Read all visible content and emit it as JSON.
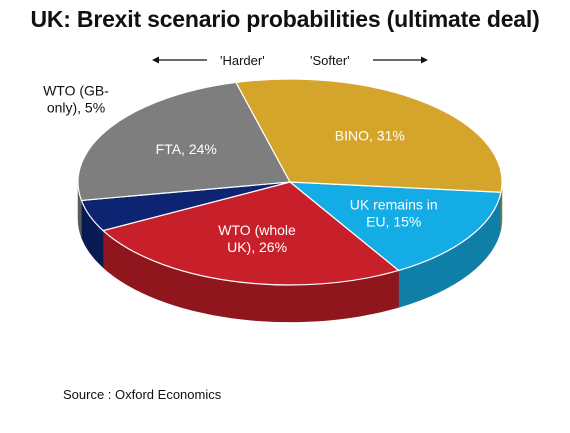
{
  "chart_data": {
    "type": "pie",
    "title": "UK: Brexit scenario probabilities (ultimate deal)",
    "legend": "none",
    "slices": [
      {
        "label_lines": [
          "UK remains in",
          "EU, 15%"
        ],
        "category": "UK remains in EU",
        "value": 15,
        "color": "#14ACE4",
        "side_color": "#0F7FA8"
      },
      {
        "label_lines": [
          "WTO (whole",
          "UK), 26%"
        ],
        "category": "WTO (whole UK)",
        "value": 26,
        "color": "#C8202A",
        "side_color": "#8F161D"
      },
      {
        "label_lines": [
          "WTO (GB-",
          "only), 5%"
        ],
        "category": "WTO (GB-only)",
        "value": 5,
        "color": "#0C2471",
        "side_color": "#081A52"
      },
      {
        "label_lines": [
          "FTA, 24%"
        ],
        "category": "FTA",
        "value": 24,
        "color": "#7E7E7E",
        "side_color": "#5A5A5A"
      },
      {
        "label_lines": [
          "BINO, 31%"
        ],
        "category": "BINO",
        "value": 31,
        "color": "#D4A52A",
        "side_color": "#987312"
      }
    ],
    "annotations": {
      "harder": "'Harder'",
      "softer": "'Softer'"
    }
  },
  "source": "Source : Oxford Economics"
}
